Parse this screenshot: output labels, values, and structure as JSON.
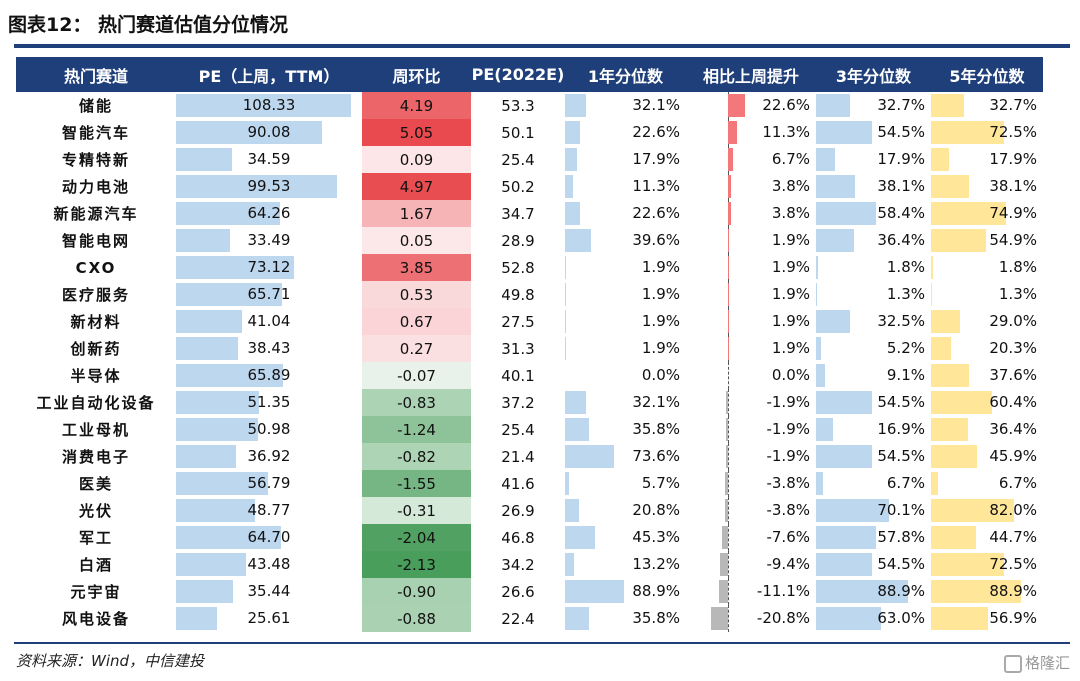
{
  "title": "图表12： 热门赛道估值分位情况",
  "source": "资料来源：Wind，中信建投",
  "watermark": "格隆汇",
  "colors": {
    "header_bg": "#1f3f7a",
    "bar_blue": "#bdd7ee",
    "bar_yellow": "#ffe699",
    "pos_red": "#f4777a",
    "neg_gray": "#b8b8b8",
    "heat_red": "#e84a4f",
    "heat_green": "#4a9e5c"
  },
  "headers": [
    "热门赛道",
    "PE（上周，TTM）",
    "周环比",
    "PE(2022E)",
    "1年分位数",
    "相比上周提升",
    "3年分位数",
    "5年分位数"
  ],
  "rows": [
    {
      "name": "储能",
      "pe": "108.33",
      "wow": "4.19",
      "pe22": "53.3",
      "y1": "32.1%",
      "chg": "22.6%",
      "y3": "32.7%",
      "y5": "32.7%"
    },
    {
      "name": "智能汽车",
      "pe": "90.08",
      "wow": "5.05",
      "pe22": "50.1",
      "y1": "22.6%",
      "chg": "11.3%",
      "y3": "54.5%",
      "y5": "72.5%"
    },
    {
      "name": "专精特新",
      "pe": "34.59",
      "wow": "0.09",
      "pe22": "25.4",
      "y1": "17.9%",
      "chg": "6.7%",
      "y3": "17.9%",
      "y5": "17.9%"
    },
    {
      "name": "动力电池",
      "pe": "99.53",
      "wow": "4.97",
      "pe22": "50.2",
      "y1": "11.3%",
      "chg": "3.8%",
      "y3": "38.1%",
      "y5": "38.1%"
    },
    {
      "name": "新能源汽车",
      "pe": "64.26",
      "wow": "1.67",
      "pe22": "34.7",
      "y1": "22.6%",
      "chg": "3.8%",
      "y3": "58.4%",
      "y5": "74.9%"
    },
    {
      "name": "智能电网",
      "pe": "33.49",
      "wow": "0.05",
      "pe22": "28.9",
      "y1": "39.6%",
      "chg": "1.9%",
      "y3": "36.4%",
      "y5": "54.9%"
    },
    {
      "name": "CXO",
      "pe": "73.12",
      "wow": "3.85",
      "pe22": "52.8",
      "y1": "1.9%",
      "chg": "1.9%",
      "y3": "1.8%",
      "y5": "1.8%"
    },
    {
      "name": "医疗服务",
      "pe": "65.71",
      "wow": "0.53",
      "pe22": "49.8",
      "y1": "1.9%",
      "chg": "1.9%",
      "y3": "1.3%",
      "y5": "1.3%"
    },
    {
      "name": "新材料",
      "pe": "41.04",
      "wow": "0.67",
      "pe22": "27.5",
      "y1": "1.9%",
      "chg": "1.9%",
      "y3": "32.5%",
      "y5": "29.0%"
    },
    {
      "name": "创新药",
      "pe": "38.43",
      "wow": "0.27",
      "pe22": "31.3",
      "y1": "1.9%",
      "chg": "1.9%",
      "y3": "5.2%",
      "y5": "20.3%"
    },
    {
      "name": "半导体",
      "pe": "65.89",
      "wow": "-0.07",
      "pe22": "40.1",
      "y1": "0.0%",
      "chg": "0.0%",
      "y3": "9.1%",
      "y5": "37.6%"
    },
    {
      "name": "工业自动化设备",
      "pe": "51.35",
      "wow": "-0.83",
      "pe22": "37.2",
      "y1": "32.1%",
      "chg": "-1.9%",
      "y3": "54.5%",
      "y5": "60.4%"
    },
    {
      "name": "工业母机",
      "pe": "50.98",
      "wow": "-1.24",
      "pe22": "25.4",
      "y1": "35.8%",
      "chg": "-1.9%",
      "y3": "16.9%",
      "y5": "36.4%"
    },
    {
      "name": "消费电子",
      "pe": "36.92",
      "wow": "-0.82",
      "pe22": "21.4",
      "y1": "73.6%",
      "chg": "-1.9%",
      "y3": "54.5%",
      "y5": "45.9%"
    },
    {
      "name": "医美",
      "pe": "56.79",
      "wow": "-1.55",
      "pe22": "41.6",
      "y1": "5.7%",
      "chg": "-3.8%",
      "y3": "6.7%",
      "y5": "6.7%"
    },
    {
      "name": "光伏",
      "pe": "48.77",
      "wow": "-0.31",
      "pe22": "26.9",
      "y1": "20.8%",
      "chg": "-3.8%",
      "y3": "70.1%",
      "y5": "82.0%"
    },
    {
      "name": "军工",
      "pe": "64.70",
      "wow": "-2.04",
      "pe22": "46.8",
      "y1": "45.3%",
      "chg": "-7.6%",
      "y3": "57.8%",
      "y5": "44.7%"
    },
    {
      "name": "白酒",
      "pe": "43.48",
      "wow": "-2.13",
      "pe22": "34.2",
      "y1": "13.2%",
      "chg": "-9.4%",
      "y3": "54.5%",
      "y5": "72.5%"
    },
    {
      "name": "元宇宙",
      "pe": "35.44",
      "wow": "-0.90",
      "pe22": "26.6",
      "y1": "88.9%",
      "chg": "-11.1%",
      "y3": "88.9%",
      "y5": "88.9%"
    },
    {
      "name": "风电设备",
      "pe": "25.61",
      "wow": "-0.88",
      "pe22": "22.4",
      "y1": "35.8%",
      "chg": "-20.8%",
      "y3": "63.0%",
      "y5": "56.9%"
    }
  ]
}
